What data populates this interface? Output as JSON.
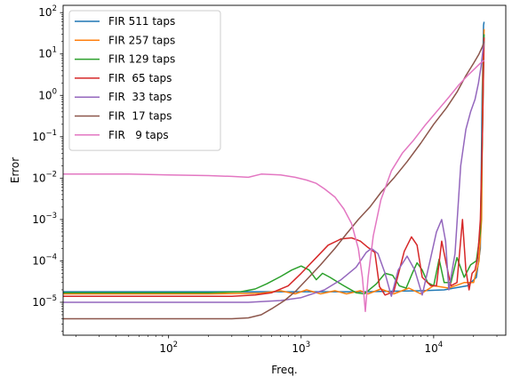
{
  "chart_data": {
    "type": "line",
    "title": "",
    "xlabel": "Freq.",
    "ylabel": "Error",
    "xscale": "log",
    "yscale": "log",
    "xlim": [
      16,
      35000
    ],
    "ylim": [
      1.6e-06,
      150
    ],
    "x_ticks": [
      {
        "value": 100,
        "base": "10",
        "exp": "2"
      },
      {
        "value": 1000,
        "base": "10",
        "exp": "3"
      },
      {
        "value": 10000,
        "base": "10",
        "exp": "4"
      }
    ],
    "y_ticks": [
      {
        "value": 1e-05,
        "base": "10",
        "exp": "−5"
      },
      {
        "value": 0.0001,
        "base": "10",
        "exp": "−4"
      },
      {
        "value": 0.001,
        "base": "10",
        "exp": "−3"
      },
      {
        "value": 0.01,
        "base": "10",
        "exp": "−2"
      },
      {
        "value": 0.1,
        "base": "10",
        "exp": "−1"
      },
      {
        "value": 1,
        "base": "10",
        "exp": "0"
      },
      {
        "value": 10,
        "base": "10",
        "exp": "1"
      },
      {
        "value": 100,
        "base": "10",
        "exp": "2"
      }
    ],
    "grid": false,
    "legend_position": "top-left",
    "series": [
      {
        "name": "FIR 511 taps",
        "color": "#1f77b4",
        "points": [
          [
            16,
            1.8e-05
          ],
          [
            100,
            1.8e-05
          ],
          [
            500,
            1.8e-05
          ],
          [
            1000,
            1.8e-05
          ],
          [
            3000,
            1.8e-05
          ],
          [
            5000,
            1.85e-05
          ],
          [
            8000,
            1.9e-05
          ],
          [
            12000,
            2e-05
          ],
          [
            18000,
            2.5e-05
          ],
          [
            21000,
            4e-05
          ],
          [
            22500,
            0.0002
          ],
          [
            23200,
            1
          ],
          [
            23800,
            50
          ],
          [
            24000,
            60
          ]
        ]
      },
      {
        "name": "FIR 257 taps",
        "color": "#ff7f0e",
        "points": [
          [
            16,
            1.6e-05
          ],
          [
            200,
            1.6e-05
          ],
          [
            500,
            1.65e-05
          ],
          [
            700,
            1.9e-05
          ],
          [
            900,
            1.6e-05
          ],
          [
            1100,
            2e-05
          ],
          [
            1400,
            1.6e-05
          ],
          [
            1800,
            1.9e-05
          ],
          [
            2200,
            1.6e-05
          ],
          [
            2800,
            1.9e-05
          ],
          [
            3200,
            1.6e-05
          ],
          [
            4000,
            2.1e-05
          ],
          [
            5000,
            1.6e-05
          ],
          [
            6500,
            2.2e-05
          ],
          [
            8000,
            1.6e-05
          ],
          [
            10000,
            2.5e-05
          ],
          [
            13000,
            2.2e-05
          ],
          [
            17000,
            3e-05
          ],
          [
            20000,
            3e-05
          ],
          [
            22000,
            0.0001
          ],
          [
            23000,
            0.001
          ],
          [
            23500,
            3
          ],
          [
            24000,
            40
          ]
        ]
      },
      {
        "name": "FIR 129 taps",
        "color": "#2ca02c",
        "points": [
          [
            16,
            1.7e-05
          ],
          [
            200,
            1.7e-05
          ],
          [
            350,
            1.8e-05
          ],
          [
            450,
            2.1e-05
          ],
          [
            550,
            2.8e-05
          ],
          [
            700,
            4.2e-05
          ],
          [
            850,
            6e-05
          ],
          [
            1000,
            7.5e-05
          ],
          [
            1150,
            6e-05
          ],
          [
            1300,
            3.5e-05
          ],
          [
            1450,
            5e-05
          ],
          [
            1650,
            4e-05
          ],
          [
            2100,
            2.5e-05
          ],
          [
            2600,
            1.7e-05
          ],
          [
            3000,
            1.6e-05
          ],
          [
            3700,
            2.8e-05
          ],
          [
            4300,
            5e-05
          ],
          [
            4900,
            4.5e-05
          ],
          [
            5500,
            2.5e-05
          ],
          [
            6200,
            2.2e-05
          ],
          [
            6900,
            5e-05
          ],
          [
            7500,
            9e-05
          ],
          [
            8200,
            6e-05
          ],
          [
            9000,
            3e-05
          ],
          [
            10000,
            2.5e-05
          ],
          [
            11000,
            0.00011
          ],
          [
            12000,
            3e-05
          ],
          [
            13500,
            3e-05
          ],
          [
            15000,
            0.00012
          ],
          [
            17000,
            4e-05
          ],
          [
            19000,
            8e-05
          ],
          [
            21000,
            0.0001
          ],
          [
            22500,
            0.0005
          ],
          [
            23300,
            0.1
          ],
          [
            24000,
            30
          ]
        ]
      },
      {
        "name": "FIR  65 taps",
        "color": "#d62728",
        "points": [
          [
            16,
            1.4e-05
          ],
          [
            300,
            1.4e-05
          ],
          [
            450,
            1.5e-05
          ],
          [
            600,
            1.7e-05
          ],
          [
            800,
            2.5e-05
          ],
          [
            1000,
            5e-05
          ],
          [
            1300,
            0.00012
          ],
          [
            1600,
            0.00024
          ],
          [
            2000,
            0.00034
          ],
          [
            2400,
            0.00036
          ],
          [
            2800,
            0.0003
          ],
          [
            3200,
            0.00021
          ],
          [
            3600,
            0.00016
          ],
          [
            3900,
            2.4e-05
          ],
          [
            4300,
            1.5e-05
          ],
          [
            5000,
            1.8e-05
          ],
          [
            6000,
            0.00017
          ],
          [
            6800,
            0.00038
          ],
          [
            7500,
            0.00024
          ],
          [
            8200,
            4e-05
          ],
          [
            9500,
            2.5e-05
          ],
          [
            10500,
            2.5e-05
          ],
          [
            11500,
            0.0003
          ],
          [
            12500,
            8e-05
          ],
          [
            13500,
            2.5e-05
          ],
          [
            15000,
            3e-05
          ],
          [
            16500,
            0.001
          ],
          [
            17500,
            6e-05
          ],
          [
            18500,
            2e-05
          ],
          [
            19500,
            5e-05
          ],
          [
            20500,
            6e-05
          ],
          [
            21500,
            0.00012
          ],
          [
            22500,
            0.001
          ],
          [
            23300,
            0.1
          ],
          [
            24000,
            25
          ]
        ]
      },
      {
        "name": "FIR  33 taps",
        "color": "#9467bd",
        "points": [
          [
            16,
            1e-05
          ],
          [
            400,
            1e-05
          ],
          [
            700,
            1.1e-05
          ],
          [
            1000,
            1.3e-05
          ],
          [
            1500,
            2e-05
          ],
          [
            2000,
            3.5e-05
          ],
          [
            2600,
            7e-05
          ],
          [
            3100,
            0.00016
          ],
          [
            3400,
            0.0002
          ],
          [
            3800,
            0.00015
          ],
          [
            4300,
            5e-05
          ],
          [
            4800,
            1.4e-05
          ],
          [
            5400,
            6e-05
          ],
          [
            6300,
            0.00013
          ],
          [
            7200,
            6e-05
          ],
          [
            8200,
            1.5e-05
          ],
          [
            9500,
            0.00012
          ],
          [
            10500,
            0.0005
          ],
          [
            11500,
            0.001
          ],
          [
            12300,
            0.0003
          ],
          [
            13000,
            2e-05
          ],
          [
            14500,
            0.00015
          ],
          [
            16000,
            0.02
          ],
          [
            17500,
            0.15
          ],
          [
            19000,
            0.4
          ],
          [
            20500,
            0.8
          ],
          [
            21800,
            2
          ],
          [
            22800,
            5
          ],
          [
            23500,
            12
          ],
          [
            24000,
            20
          ]
        ]
      },
      {
        "name": "FIR  17 taps",
        "color": "#8c564b",
        "points": [
          [
            16,
            4e-06
          ],
          [
            300,
            4e-06
          ],
          [
            400,
            4.2e-06
          ],
          [
            500,
            5e-06
          ],
          [
            600,
            7e-06
          ],
          [
            750,
            1.1e-05
          ],
          [
            900,
            1.8e-05
          ],
          [
            1100,
            3.5e-05
          ],
          [
            1400,
            8e-05
          ],
          [
            1800,
            0.0002
          ],
          [
            2200,
            0.00045
          ],
          [
            2700,
            0.001
          ],
          [
            3300,
            0.002
          ],
          [
            4000,
            0.0045
          ],
          [
            5000,
            0.01
          ],
          [
            6300,
            0.025
          ],
          [
            8000,
            0.07
          ],
          [
            10000,
            0.2
          ],
          [
            12500,
            0.5
          ],
          [
            15000,
            1.2
          ],
          [
            17500,
            3
          ],
          [
            20000,
            6
          ],
          [
            22000,
            10
          ],
          [
            23300,
            15
          ],
          [
            24000,
            20
          ]
        ]
      },
      {
        "name": "FIR   9 taps",
        "color": "#e377c2",
        "points": [
          [
            16,
            0.0125
          ],
          [
            50,
            0.0125
          ],
          [
            100,
            0.012
          ],
          [
            200,
            0.0115
          ],
          [
            300,
            0.011
          ],
          [
            400,
            0.0105
          ],
          [
            500,
            0.0125
          ],
          [
            700,
            0.012
          ],
          [
            900,
            0.0105
          ],
          [
            1100,
            0.009
          ],
          [
            1300,
            0.0075
          ],
          [
            1500,
            0.0055
          ],
          [
            1800,
            0.0035
          ],
          [
            2100,
            0.0018
          ],
          [
            2400,
            0.0008
          ],
          [
            2700,
            0.0002
          ],
          [
            2900,
            4e-05
          ],
          [
            3050,
            6e-06
          ],
          [
            3200,
            4e-05
          ],
          [
            3500,
            0.0004
          ],
          [
            4000,
            0.003
          ],
          [
            4800,
            0.015
          ],
          [
            5800,
            0.04
          ],
          [
            7000,
            0.08
          ],
          [
            8500,
            0.18
          ],
          [
            10500,
            0.4
          ],
          [
            13000,
            0.9
          ],
          [
            15500,
            1.8
          ],
          [
            18000,
            3
          ],
          [
            20500,
            4.5
          ],
          [
            22500,
            6
          ],
          [
            24000,
            7
          ]
        ]
      }
    ]
  }
}
